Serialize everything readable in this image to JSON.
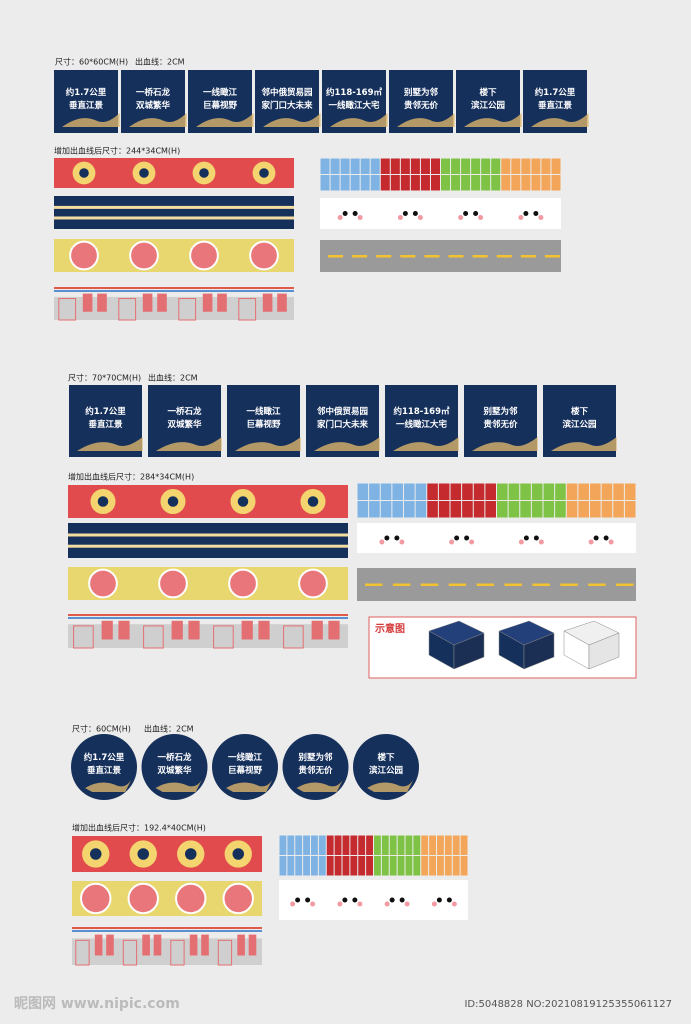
{
  "sections": [
    {
      "size": "尺寸：60*60CM(H)",
      "bleed": "出血线：2CM",
      "panels": [
        {
          "line1": "约1.7公里",
          "line2": "垂直江景"
        },
        {
          "line1": "一桥石龙",
          "line2": "双城繁华"
        },
        {
          "line1": "一线瞰江",
          "line2": "巨幕视野"
        },
        {
          "line1": "邻中俄贸易园",
          "line2": "家门口大未来"
        },
        {
          "line1": "约118-169㎡",
          "line2": "一线瞰江大宅"
        },
        {
          "line1": "别墅为邻",
          "line2": "贵邻无价"
        },
        {
          "line1": "楼下",
          "line2": "滨江公园"
        },
        {
          "line1": "约1.7公里",
          "line2": "垂直江景"
        }
      ],
      "strip_size": "增加出血线后尺寸：244*34CM(H)"
    },
    {
      "size": "尺寸：70*70CM(H)",
      "bleed": "出血线：2CM",
      "panels": [
        {
          "line1": "约1.7公里",
          "line2": "垂直江景"
        },
        {
          "line1": "一桥石龙",
          "line2": "双城繁华"
        },
        {
          "line1": "一线瞰江",
          "line2": "巨幕视野"
        },
        {
          "line1": "邻中俄贸易园",
          "line2": "家门口大未来"
        },
        {
          "line1": "约118-169㎡",
          "line2": "一线瞰江大宅"
        },
        {
          "line1": "别墅为邻",
          "line2": "贵邻无价"
        },
        {
          "line1": "楼下",
          "line2": "滨江公园"
        }
      ],
      "strip_size": "增加出血线后尺寸：284*34CM(H)",
      "diagram_label": "示意图"
    },
    {
      "size": "尺寸：60CM(H)",
      "bleed": "出血线：2CM",
      "panels": [
        {
          "line1": "约1.7公里",
          "line2": "垂直江景"
        },
        {
          "line1": "一桥石龙",
          "line2": "双城繁华"
        },
        {
          "line1": "一线瞰江",
          "line2": "巨幕视野"
        },
        {
          "line1": "别墅为邻",
          "line2": "贵邻无价"
        },
        {
          "line1": "楼下",
          "line2": "滨江公园"
        }
      ],
      "strip_size": "增加出血线后尺寸：192.4*40CM(H)"
    }
  ],
  "watermark": {
    "site": "昵图网 www.nipic.com",
    "id": "ID:5048828 NO:20210819125355061127"
  }
}
